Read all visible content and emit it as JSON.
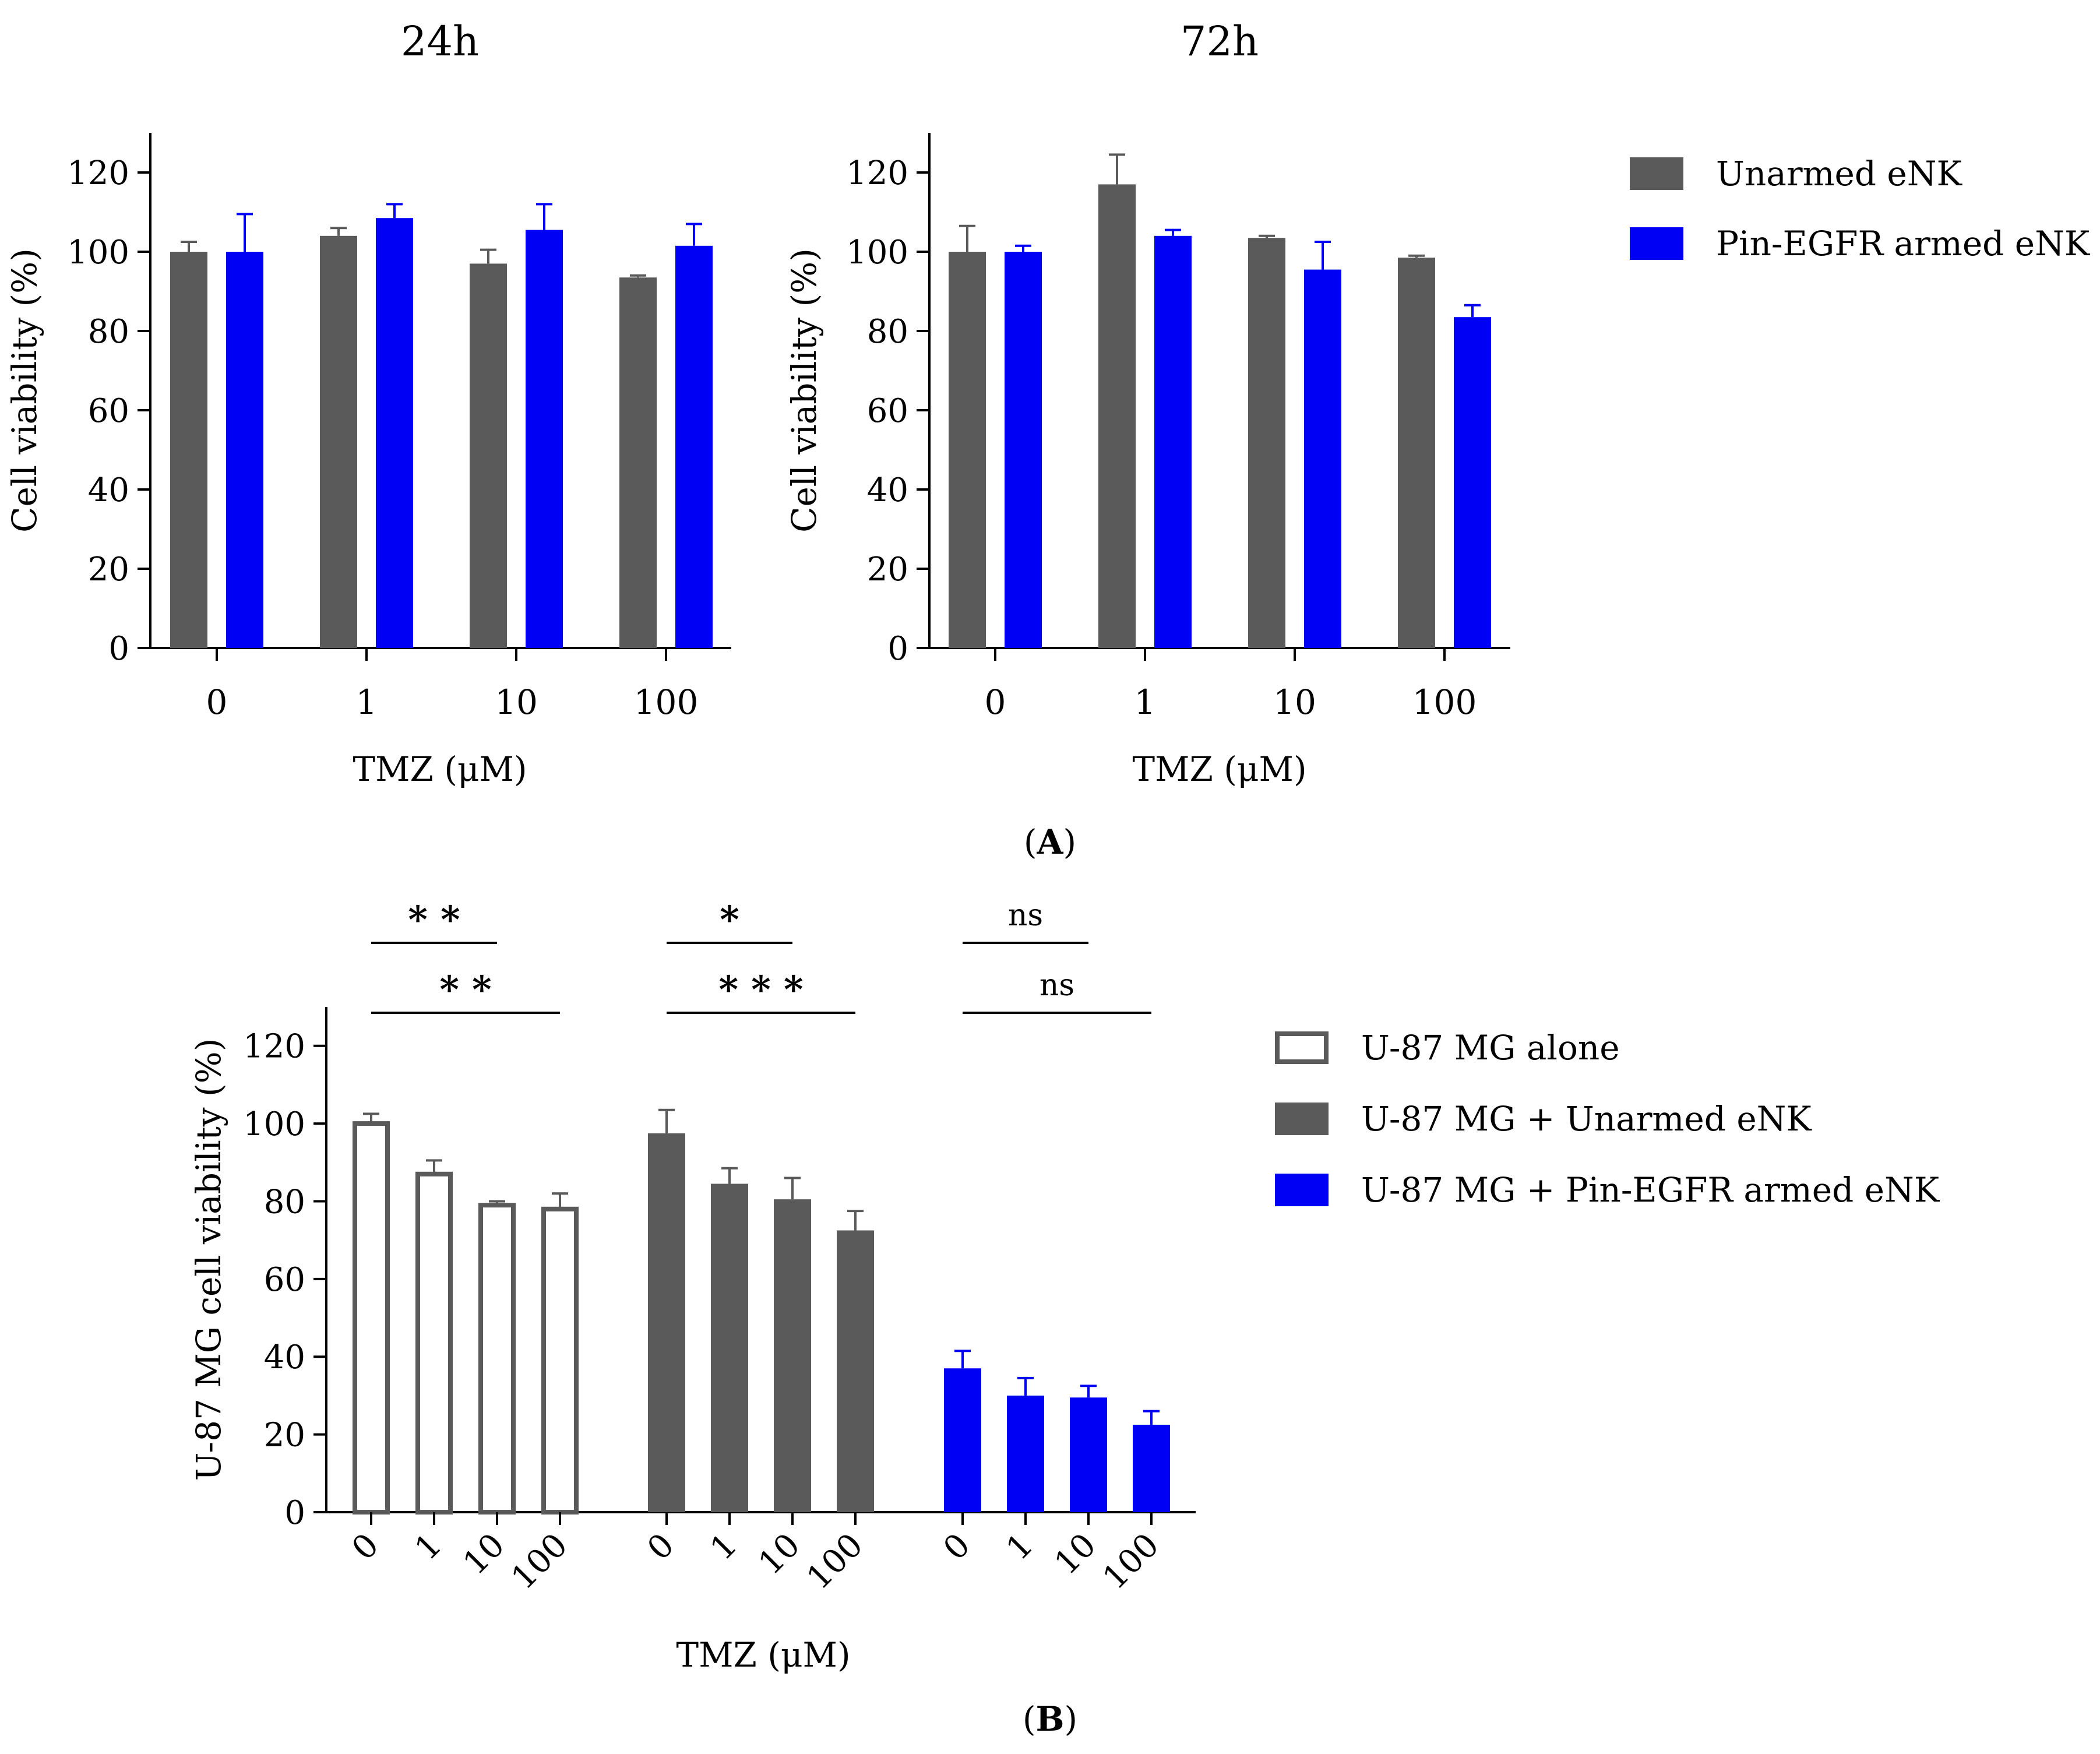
{
  "colors": {
    "unarmed": "#5a5a5a",
    "armed": "#0000f5",
    "alone_stroke": "#5a5a5a",
    "axis": "#000000"
  },
  "legend_a": [
    {
      "label": "Unarmed eNK",
      "style": "unarmed"
    },
    {
      "label": "Pin-EGFR armed eNK",
      "style": "armed"
    }
  ],
  "legend_b": [
    {
      "label": "U-87 MG alone",
      "style": "alone"
    },
    {
      "label": "U-87 MG + Unarmed eNK",
      "style": "unarmed"
    },
    {
      "label": "U-87 MG + Pin-EGFR armed eNK",
      "style": "armed"
    }
  ],
  "panel_labels": {
    "a": "A",
    "b": "B"
  },
  "chart_data": [
    {
      "id": "chart-24h",
      "type": "bar",
      "title": "24h",
      "xlabel": "TMZ (μM)",
      "ylabel": "Cell viability (%)",
      "ylim": [
        0,
        130
      ],
      "yticks": [
        0,
        20,
        40,
        60,
        80,
        100,
        120
      ],
      "categories": [
        "0",
        "1",
        "10",
        "100"
      ],
      "series": [
        {
          "name": "Unarmed eNK",
          "style": "unarmed",
          "values": [
            100,
            104,
            97,
            93.5
          ],
          "errors": [
            2.5,
            2,
            3.5,
            0.5
          ]
        },
        {
          "name": "Pin-EGFR armed eNK",
          "style": "armed",
          "values": [
            100,
            108.5,
            105.5,
            101.5
          ],
          "errors": [
            9.5,
            3.5,
            6.5,
            5.5
          ]
        }
      ]
    },
    {
      "id": "chart-72h",
      "type": "bar",
      "title": "72h",
      "xlabel": "TMZ (μM)",
      "ylabel": "Cell viability (%)",
      "ylim": [
        0,
        130
      ],
      "yticks": [
        0,
        20,
        40,
        60,
        80,
        100,
        120
      ],
      "categories": [
        "0",
        "1",
        "10",
        "100"
      ],
      "series": [
        {
          "name": "Unarmed eNK",
          "style": "unarmed",
          "values": [
            100,
            117,
            103.5,
            98.5
          ],
          "errors": [
            6.5,
            7.5,
            0.5,
            0.5
          ]
        },
        {
          "name": "Pin-EGFR armed eNK",
          "style": "armed",
          "values": [
            100,
            104,
            95.5,
            83.5
          ],
          "errors": [
            1.5,
            1.5,
            7,
            3
          ]
        }
      ]
    },
    {
      "id": "chart-b",
      "type": "bar",
      "title": "",
      "xlabel": "TMZ (μM)",
      "ylabel": "U-87 MG cell viability (%)",
      "ylim": [
        0,
        130
      ],
      "yticks": [
        0,
        20,
        40,
        60,
        80,
        100,
        120
      ],
      "groups": [
        {
          "name": "U-87 MG alone",
          "style": "alone",
          "categories": [
            "0",
            "1",
            "10",
            "100"
          ],
          "values": [
            100,
            87,
            79,
            78
          ],
          "errors": [
            2.5,
            3.5,
            1,
            4
          ]
        },
        {
          "name": "U-87 MG + Unarmed eNK",
          "style": "unarmed",
          "categories": [
            "0",
            "1",
            "10",
            "100"
          ],
          "values": [
            97.5,
            84.5,
            80.5,
            72.5
          ],
          "errors": [
            6,
            4,
            5.5,
            5
          ]
        },
        {
          "name": "U-87 MG + Pin-EGFR armed eNK",
          "style": "armed",
          "categories": [
            "0",
            "1",
            "10",
            "100"
          ],
          "values": [
            37,
            30,
            29.5,
            22.5
          ],
          "errors": [
            4.5,
            4.5,
            3,
            3.5
          ]
        }
      ],
      "significance": [
        {
          "group": 0,
          "from": 0,
          "to": 2,
          "label": "* *"
        },
        {
          "group": 0,
          "from": 0,
          "to": 3,
          "label": "* *"
        },
        {
          "group": 1,
          "from": 0,
          "to": 2,
          "label": "*"
        },
        {
          "group": 1,
          "from": 0,
          "to": 3,
          "label": "* * *"
        },
        {
          "group": 2,
          "from": 0,
          "to": 2,
          "label": "ns"
        },
        {
          "group": 2,
          "from": 0,
          "to": 3,
          "label": "ns"
        }
      ]
    }
  ]
}
